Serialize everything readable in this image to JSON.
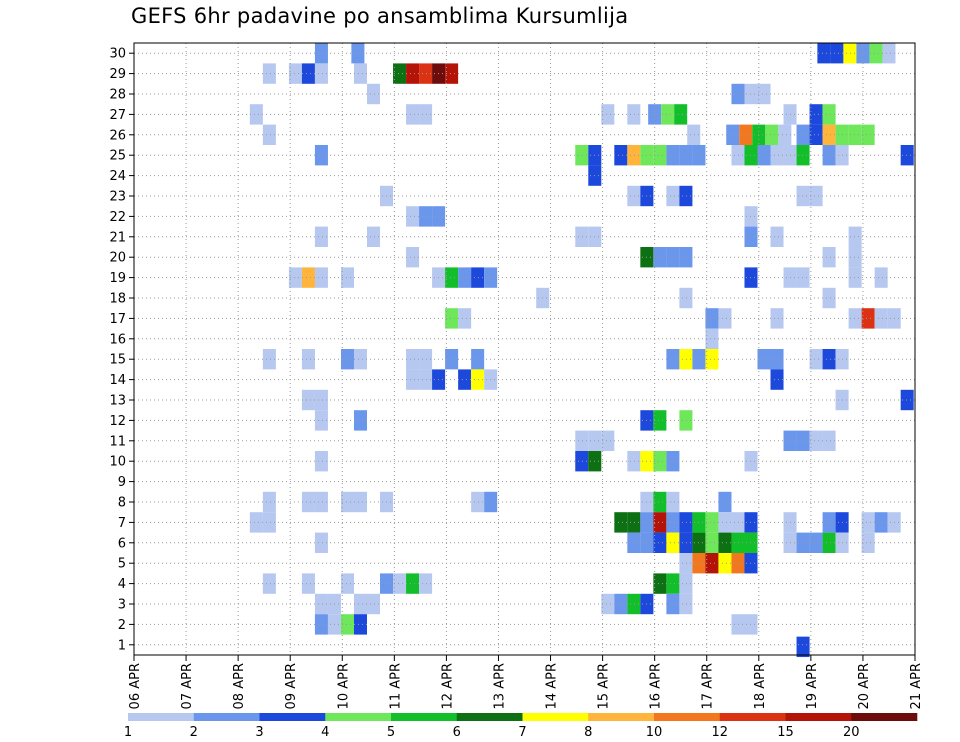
{
  "chart_data": {
    "type": "heatmap",
    "title": "GEFS 6hr padavine po ansamblima Kursumlija",
    "x_ticks": [
      "06 APR",
      "07 APR",
      "08 APR",
      "09 APR",
      "10 APR",
      "11 APR",
      "12 APR",
      "13 APR",
      "14 APR",
      "15 APR",
      "16 APR",
      "17 APR",
      "18 APR",
      "19 APR",
      "20 APR",
      "21 APR"
    ],
    "x_range_days": [
      0,
      15
    ],
    "y_ticks": [
      1,
      2,
      3,
      4,
      5,
      6,
      7,
      8,
      9,
      10,
      11,
      12,
      13,
      14,
      15,
      16,
      17,
      18,
      19,
      20,
      21,
      22,
      23,
      24,
      25,
      26,
      27,
      28,
      29,
      30
    ],
    "y_range": [
      0.5,
      30.5
    ],
    "grid": true,
    "legend": {
      "position": "bottom",
      "colors": [
        "#b6c8f0",
        "#6a96ec",
        "#1c48dc",
        "#6ee85a",
        "#12bf2a",
        "#0d7012",
        "#ffff00",
        "#ffb43c",
        "#f27820",
        "#dc3214",
        "#b41408",
        "#6e0c0c"
      ],
      "labels": [
        "1",
        "2",
        "3",
        "4",
        "5",
        "6",
        "7",
        "8",
        "10",
        "12",
        "15",
        "20"
      ]
    },
    "cells": [
      [
        3.6,
        30,
        2
      ],
      [
        4.3,
        30,
        2
      ],
      [
        13.25,
        30,
        3
      ],
      [
        13.5,
        30,
        3
      ],
      [
        13.75,
        30,
        7
      ],
      [
        14,
        30,
        2
      ],
      [
        14.25,
        30,
        4
      ],
      [
        14.5,
        30,
        1
      ],
      [
        2.6,
        29,
        1
      ],
      [
        3.1,
        29,
        1
      ],
      [
        3.35,
        29,
        3
      ],
      [
        3.6,
        29,
        1
      ],
      [
        4.35,
        29,
        1
      ],
      [
        5.1,
        29,
        6
      ],
      [
        5.35,
        29,
        11
      ],
      [
        5.6,
        29,
        10
      ],
      [
        5.85,
        29,
        12
      ],
      [
        6.1,
        29,
        11
      ],
      [
        4.6,
        28,
        1
      ],
      [
        11.6,
        28,
        2
      ],
      [
        11.85,
        28,
        1
      ],
      [
        12.1,
        28,
        1
      ],
      [
        2.35,
        27,
        1
      ],
      [
        5.35,
        27,
        1
      ],
      [
        5.6,
        27,
        1
      ],
      [
        9.1,
        27,
        1
      ],
      [
        9.6,
        27,
        1
      ],
      [
        10,
        27,
        2
      ],
      [
        10.25,
        27,
        4
      ],
      [
        10.5,
        27,
        5
      ],
      [
        12.6,
        27,
        1
      ],
      [
        13.1,
        27,
        3
      ],
      [
        13.35,
        27,
        4
      ],
      [
        2.6,
        26,
        1
      ],
      [
        10.75,
        26,
        1
      ],
      [
        11.5,
        26,
        2
      ],
      [
        11.75,
        26,
        9
      ],
      [
        12,
        26,
        5
      ],
      [
        12.25,
        26,
        4
      ],
      [
        12.5,
        26,
        1
      ],
      [
        12.85,
        26,
        2
      ],
      [
        13.1,
        26,
        3
      ],
      [
        13.35,
        26,
        8
      ],
      [
        13.6,
        26,
        4
      ],
      [
        13.85,
        26,
        4
      ],
      [
        14.1,
        26,
        4
      ],
      [
        3.6,
        25,
        2
      ],
      [
        8.6,
        25,
        4
      ],
      [
        8.85,
        25,
        3
      ],
      [
        9.35,
        25,
        3
      ],
      [
        9.6,
        25,
        8
      ],
      [
        9.85,
        25,
        4
      ],
      [
        10.1,
        25,
        4
      ],
      [
        10.35,
        25,
        2
      ],
      [
        10.6,
        25,
        2
      ],
      [
        10.85,
        25,
        2
      ],
      [
        11.6,
        25,
        1
      ],
      [
        11.85,
        25,
        5
      ],
      [
        12.1,
        25,
        2
      ],
      [
        12.35,
        25,
        1
      ],
      [
        12.6,
        25,
        1
      ],
      [
        12.85,
        25,
        5
      ],
      [
        13.35,
        25,
        2
      ],
      [
        13.6,
        25,
        1
      ],
      [
        14.85,
        25,
        3
      ],
      [
        8.85,
        24,
        3
      ],
      [
        4.85,
        23,
        1
      ],
      [
        9.6,
        23,
        1
      ],
      [
        9.85,
        23,
        3
      ],
      [
        10.35,
        23,
        1
      ],
      [
        10.6,
        23,
        3
      ],
      [
        12.85,
        23,
        1
      ],
      [
        13.1,
        23,
        1
      ],
      [
        5.35,
        22,
        1
      ],
      [
        5.6,
        22,
        2
      ],
      [
        5.85,
        22,
        2
      ],
      [
        11.85,
        22,
        1
      ],
      [
        3.6,
        21,
        1
      ],
      [
        4.6,
        21,
        1
      ],
      [
        8.6,
        21,
        1
      ],
      [
        8.85,
        21,
        1
      ],
      [
        11.85,
        21,
        2
      ],
      [
        12.35,
        21,
        1
      ],
      [
        13.85,
        21,
        1
      ],
      [
        5.35,
        20,
        1
      ],
      [
        9.85,
        20,
        6
      ],
      [
        10.1,
        20,
        2
      ],
      [
        10.35,
        20,
        2
      ],
      [
        10.6,
        20,
        2
      ],
      [
        13.35,
        20,
        1
      ],
      [
        13.85,
        20,
        1
      ],
      [
        3.1,
        19,
        1
      ],
      [
        3.35,
        19,
        8
      ],
      [
        3.6,
        19,
        1
      ],
      [
        4.1,
        19,
        1
      ],
      [
        5.85,
        19,
        1
      ],
      [
        6.1,
        19,
        5
      ],
      [
        6.35,
        19,
        2
      ],
      [
        6.6,
        19,
        3
      ],
      [
        6.85,
        19,
        2
      ],
      [
        11.85,
        19,
        3
      ],
      [
        12.6,
        19,
        1
      ],
      [
        12.85,
        19,
        1
      ],
      [
        13.85,
        19,
        1
      ],
      [
        14.35,
        19,
        1
      ],
      [
        7.85,
        18,
        1
      ],
      [
        10.6,
        18,
        1
      ],
      [
        13.35,
        18,
        1
      ],
      [
        11.1,
        17,
        2
      ],
      [
        11.35,
        17,
        1
      ],
      [
        12.35,
        17,
        1
      ],
      [
        13.85,
        17,
        1
      ],
      [
        14.1,
        17,
        10
      ],
      [
        14.35,
        17,
        1
      ],
      [
        14.6,
        17,
        1
      ],
      [
        6.1,
        17,
        4
      ],
      [
        6.35,
        17,
        1
      ],
      [
        11.1,
        16,
        1
      ],
      [
        2.6,
        15,
        1
      ],
      [
        3.35,
        15,
        1
      ],
      [
        4.1,
        15,
        2
      ],
      [
        4.35,
        15,
        1
      ],
      [
        5.35,
        15,
        1
      ],
      [
        5.6,
        15,
        1
      ],
      [
        6.1,
        15,
        2
      ],
      [
        6.6,
        15,
        2
      ],
      [
        10.35,
        15,
        2
      ],
      [
        10.6,
        15,
        7
      ],
      [
        10.85,
        15,
        2
      ],
      [
        11.1,
        15,
        7
      ],
      [
        12.1,
        15,
        2
      ],
      [
        12.35,
        15,
        2
      ],
      [
        13.1,
        15,
        1
      ],
      [
        13.35,
        15,
        3
      ],
      [
        13.6,
        15,
        1
      ],
      [
        5.35,
        14,
        1
      ],
      [
        5.6,
        14,
        1
      ],
      [
        5.85,
        14,
        3
      ],
      [
        6.35,
        14,
        3
      ],
      [
        6.6,
        14,
        7
      ],
      [
        6.85,
        14,
        1
      ],
      [
        12.35,
        14,
        3
      ],
      [
        3.35,
        13,
        1
      ],
      [
        3.6,
        13,
        1
      ],
      [
        13.6,
        13,
        1
      ],
      [
        14.85,
        13,
        3
      ],
      [
        3.6,
        12,
        1
      ],
      [
        4.35,
        12,
        2
      ],
      [
        9.85,
        12,
        3
      ],
      [
        10.1,
        12,
        5
      ],
      [
        10.6,
        12,
        4
      ],
      [
        8.6,
        11,
        1
      ],
      [
        8.85,
        11,
        1
      ],
      [
        9.1,
        11,
        1
      ],
      [
        12.6,
        11,
        2
      ],
      [
        12.85,
        11,
        2
      ],
      [
        13.1,
        11,
        1
      ],
      [
        13.35,
        11,
        1
      ],
      [
        3.6,
        10,
        1
      ],
      [
        8.6,
        10,
        3
      ],
      [
        8.85,
        10,
        6
      ],
      [
        9.6,
        10,
        1
      ],
      [
        9.85,
        10,
        7
      ],
      [
        10.1,
        10,
        4
      ],
      [
        10.35,
        10,
        2
      ],
      [
        11.85,
        10,
        1
      ],
      [
        2.6,
        8,
        1
      ],
      [
        3.35,
        8,
        1
      ],
      [
        3.6,
        8,
        1
      ],
      [
        4.1,
        8,
        1
      ],
      [
        4.35,
        8,
        1
      ],
      [
        4.85,
        8,
        1
      ],
      [
        6.6,
        8,
        1
      ],
      [
        6.85,
        8,
        2
      ],
      [
        9.85,
        8,
        1
      ],
      [
        10.1,
        8,
        5
      ],
      [
        10.35,
        8,
        1
      ],
      [
        11.35,
        8,
        2
      ],
      [
        2.35,
        7,
        1
      ],
      [
        2.6,
        7,
        1
      ],
      [
        9.35,
        7,
        6
      ],
      [
        9.6,
        7,
        6
      ],
      [
        9.85,
        7,
        2
      ],
      [
        10.1,
        7,
        11
      ],
      [
        10.35,
        7,
        2
      ],
      [
        10.6,
        7,
        3
      ],
      [
        10.85,
        7,
        5
      ],
      [
        11.1,
        7,
        4
      ],
      [
        11.35,
        7,
        1
      ],
      [
        11.6,
        7,
        1
      ],
      [
        11.85,
        7,
        3
      ],
      [
        12.6,
        7,
        1
      ],
      [
        13.35,
        7,
        2
      ],
      [
        13.6,
        7,
        3
      ],
      [
        14.1,
        7,
        1
      ],
      [
        14.35,
        7,
        2
      ],
      [
        14.6,
        7,
        1
      ],
      [
        3.6,
        6,
        1
      ],
      [
        9.6,
        6,
        2
      ],
      [
        9.85,
        6,
        2
      ],
      [
        10.1,
        6,
        3
      ],
      [
        10.35,
        6,
        7
      ],
      [
        10.6,
        6,
        3
      ],
      [
        10.85,
        6,
        6
      ],
      [
        11.1,
        6,
        4
      ],
      [
        11.35,
        6,
        6
      ],
      [
        11.6,
        6,
        5
      ],
      [
        11.85,
        6,
        5
      ],
      [
        12.6,
        6,
        1
      ],
      [
        12.85,
        6,
        2
      ],
      [
        13.1,
        6,
        2
      ],
      [
        13.35,
        6,
        5
      ],
      [
        13.6,
        6,
        1
      ],
      [
        14.1,
        6,
        1
      ],
      [
        10.6,
        5,
        1
      ],
      [
        10.85,
        5,
        9
      ],
      [
        11.1,
        5,
        11
      ],
      [
        11.35,
        5,
        7
      ],
      [
        11.6,
        5,
        9
      ],
      [
        11.85,
        5,
        3
      ],
      [
        2.6,
        4,
        1
      ],
      [
        3.35,
        4,
        1
      ],
      [
        4.1,
        4,
        1
      ],
      [
        4.85,
        4,
        2
      ],
      [
        5.1,
        4,
        1
      ],
      [
        5.35,
        4,
        5
      ],
      [
        5.6,
        4,
        1
      ],
      [
        10.1,
        4,
        6
      ],
      [
        10.35,
        4,
        5
      ],
      [
        10.6,
        4,
        1
      ],
      [
        3.6,
        3,
        1
      ],
      [
        3.85,
        3,
        1
      ],
      [
        4.35,
        3,
        1
      ],
      [
        4.6,
        3,
        1
      ],
      [
        9.1,
        3,
        1
      ],
      [
        9.35,
        3,
        2
      ],
      [
        9.6,
        3,
        5
      ],
      [
        9.85,
        3,
        3
      ],
      [
        10.35,
        3,
        2
      ],
      [
        10.6,
        3,
        1
      ],
      [
        3.6,
        2,
        2
      ],
      [
        3.85,
        2,
        1
      ],
      [
        4.1,
        2,
        4
      ],
      [
        4.35,
        2,
        3
      ],
      [
        11.6,
        2,
        1
      ],
      [
        11.85,
        2,
        1
      ],
      [
        12.85,
        0.9,
        3
      ]
    ]
  }
}
